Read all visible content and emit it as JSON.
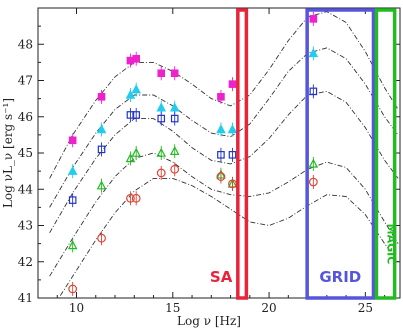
{
  "chart_data": {
    "type": "scatter",
    "title": "",
    "xlabel": "Log ν [Hz]",
    "ylabel": "Log νL_ν [erg s⁻¹]",
    "xlim": [
      8,
      26.8
    ],
    "ylim": [
      41,
      49
    ],
    "xticks": [
      10,
      15,
      20,
      25
    ],
    "xtick_labels": [
      "10",
      "15",
      "20",
      "25"
    ],
    "yticks": [
      41,
      42,
      43,
      44,
      45,
      46,
      47,
      48
    ],
    "ytick_labels": [
      "41",
      "42",
      "43",
      "44",
      "45",
      "46",
      "47",
      "48"
    ],
    "grid": false,
    "legend": "none",
    "bands": [
      {
        "label": "SA",
        "x_range": [
          18.3,
          18.9
        ],
        "color": "#e8243a"
      },
      {
        "label": "GRID",
        "x_range": [
          21.9,
          25.5
        ],
        "color": "#5555dd"
      },
      {
        "label": "MAGIC",
        "x_range": [
          25.5,
          26.6
        ],
        "color": "#22bb22"
      }
    ],
    "series": [
      {
        "color": "#ee22cc",
        "marker": "square-filled",
        "points": [
          [
            9.8,
            45.35
          ],
          [
            11.3,
            46.55
          ],
          [
            12.8,
            47.55
          ],
          [
            13.1,
            47.6
          ],
          [
            14.4,
            47.2
          ],
          [
            15.1,
            47.2
          ],
          [
            17.5,
            46.55
          ],
          [
            18.1,
            46.9
          ],
          [
            22.3,
            48.7
          ]
        ],
        "model_curve": [
          [
            8.6,
            44.3
          ],
          [
            9.8,
            45.5
          ],
          [
            11.0,
            46.45
          ],
          [
            12.0,
            47.1
          ],
          [
            13.0,
            47.5
          ],
          [
            14.0,
            47.5
          ],
          [
            15.0,
            47.25
          ],
          [
            16.0,
            46.9
          ],
          [
            17.0,
            46.5
          ],
          [
            18.0,
            46.3
          ],
          [
            19.0,
            46.6
          ],
          [
            20.0,
            47.3
          ],
          [
            21.0,
            48.1
          ],
          [
            22.0,
            48.75
          ],
          [
            23.0,
            48.9
          ],
          [
            24.0,
            48.6
          ],
          [
            25.0,
            47.8
          ],
          [
            26.0,
            46.8
          ],
          [
            26.7,
            46.2
          ]
        ]
      },
      {
        "color": "#22ccee",
        "marker": "triangle-filled",
        "points": [
          [
            9.8,
            44.5
          ],
          [
            11.3,
            45.65
          ],
          [
            12.8,
            46.6
          ],
          [
            13.1,
            46.75
          ],
          [
            14.4,
            46.25
          ],
          [
            15.1,
            46.25
          ],
          [
            17.5,
            45.65
          ],
          [
            18.1,
            45.65
          ],
          [
            22.3,
            47.75
          ]
        ],
        "model_curve": [
          [
            8.6,
            43.5
          ],
          [
            9.8,
            44.6
          ],
          [
            11.0,
            45.55
          ],
          [
            12.0,
            46.2
          ],
          [
            13.0,
            46.6
          ],
          [
            14.0,
            46.6
          ],
          [
            15.0,
            46.3
          ],
          [
            16.0,
            45.9
          ],
          [
            17.0,
            45.55
          ],
          [
            18.0,
            45.45
          ],
          [
            19.0,
            45.8
          ],
          [
            20.0,
            46.5
          ],
          [
            21.0,
            47.25
          ],
          [
            22.0,
            47.75
          ],
          [
            23.0,
            47.9
          ],
          [
            24.0,
            47.6
          ],
          [
            25.0,
            46.9
          ],
          [
            26.0,
            46.0
          ],
          [
            26.7,
            45.5
          ]
        ]
      },
      {
        "color": "#2233cc",
        "marker": "square-open",
        "points": [
          [
            9.8,
            43.7
          ],
          [
            11.3,
            45.1
          ],
          [
            12.8,
            46.05
          ],
          [
            13.1,
            46.05
          ],
          [
            14.4,
            45.95
          ],
          [
            15.1,
            45.95
          ],
          [
            17.5,
            44.95
          ],
          [
            18.1,
            44.95
          ],
          [
            22.3,
            46.7
          ]
        ],
        "model_curve": [
          [
            8.6,
            42.8
          ],
          [
            9.8,
            43.9
          ],
          [
            11.0,
            44.85
          ],
          [
            12.0,
            45.5
          ],
          [
            13.0,
            45.95
          ],
          [
            14.0,
            45.95
          ],
          [
            15.0,
            45.6
          ],
          [
            16.0,
            45.15
          ],
          [
            17.0,
            44.8
          ],
          [
            18.0,
            44.7
          ],
          [
            19.0,
            44.9
          ],
          [
            20.0,
            45.4
          ],
          [
            21.0,
            46.05
          ],
          [
            22.0,
            46.6
          ],
          [
            23.0,
            46.7
          ],
          [
            24.0,
            46.4
          ],
          [
            25.0,
            45.7
          ],
          [
            26.0,
            44.8
          ],
          [
            26.7,
            44.3
          ]
        ]
      },
      {
        "color": "#22bb22",
        "marker": "triangle-open",
        "points": [
          [
            9.8,
            42.45
          ],
          [
            11.3,
            44.1
          ],
          [
            12.8,
            44.85
          ],
          [
            13.1,
            45.0
          ],
          [
            14.4,
            45.0
          ],
          [
            15.1,
            45.05
          ],
          [
            17.5,
            44.4
          ],
          [
            18.1,
            44.15
          ],
          [
            22.3,
            44.7
          ]
        ],
        "model_curve": [
          [
            8.6,
            41.6
          ],
          [
            9.8,
            42.65
          ],
          [
            11.0,
            43.65
          ],
          [
            12.0,
            44.35
          ],
          [
            13.0,
            44.85
          ],
          [
            14.0,
            45.0
          ],
          [
            15.0,
            44.75
          ],
          [
            16.0,
            44.35
          ],
          [
            17.0,
            44.0
          ],
          [
            18.0,
            43.85
          ],
          [
            19.0,
            43.8
          ],
          [
            20.0,
            43.9
          ],
          [
            21.0,
            44.2
          ],
          [
            22.0,
            44.55
          ],
          [
            23.0,
            44.75
          ],
          [
            24.0,
            44.6
          ],
          [
            25.0,
            44.0
          ],
          [
            26.0,
            43.1
          ],
          [
            26.7,
            42.5
          ]
        ]
      },
      {
        "color": "#dd4433",
        "marker": "circle-open",
        "points": [
          [
            9.8,
            41.25
          ],
          [
            11.3,
            42.65
          ],
          [
            12.8,
            43.75
          ],
          [
            13.1,
            43.75
          ],
          [
            14.4,
            44.45
          ],
          [
            15.1,
            44.55
          ],
          [
            17.5,
            44.35
          ],
          [
            18.1,
            44.15
          ],
          [
            22.3,
            44.2
          ]
        ],
        "model_curve": [
          [
            8.6,
            40.6
          ],
          [
            9.8,
            41.6
          ],
          [
            11.0,
            42.6
          ],
          [
            12.0,
            43.35
          ],
          [
            13.0,
            43.95
          ],
          [
            14.0,
            44.3
          ],
          [
            15.0,
            44.3
          ],
          [
            16.0,
            44.1
          ],
          [
            17.0,
            43.8
          ],
          [
            18.0,
            43.45
          ],
          [
            19.0,
            43.1
          ],
          [
            20.0,
            43.0
          ],
          [
            21.0,
            43.2
          ],
          [
            22.0,
            43.55
          ],
          [
            23.0,
            43.85
          ],
          [
            24.0,
            43.8
          ],
          [
            25.0,
            43.3
          ],
          [
            26.0,
            42.5
          ],
          [
            26.7,
            42.0
          ]
        ]
      }
    ]
  }
}
